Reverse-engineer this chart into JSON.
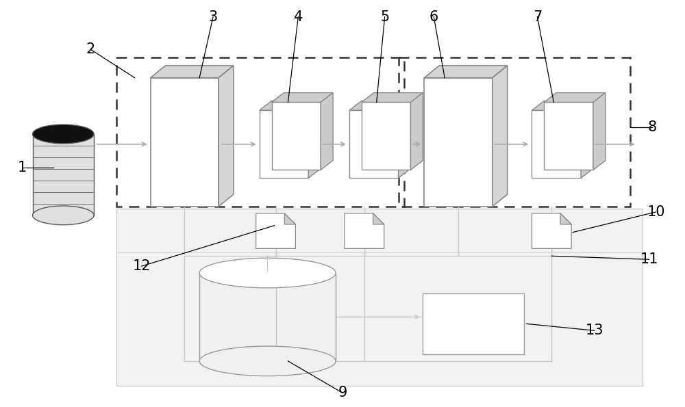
{
  "bg_color": "#ffffff",
  "label_color": "#000000",
  "edge_color": "#888888",
  "side_color": "#cccccc",
  "dash_color": "#333333",
  "arrow_color": "#aaaaaa",
  "conn_color": "#cccccc",
  "bottom_face": "#f2f2f2",
  "bottom_edge": "#cccccc"
}
